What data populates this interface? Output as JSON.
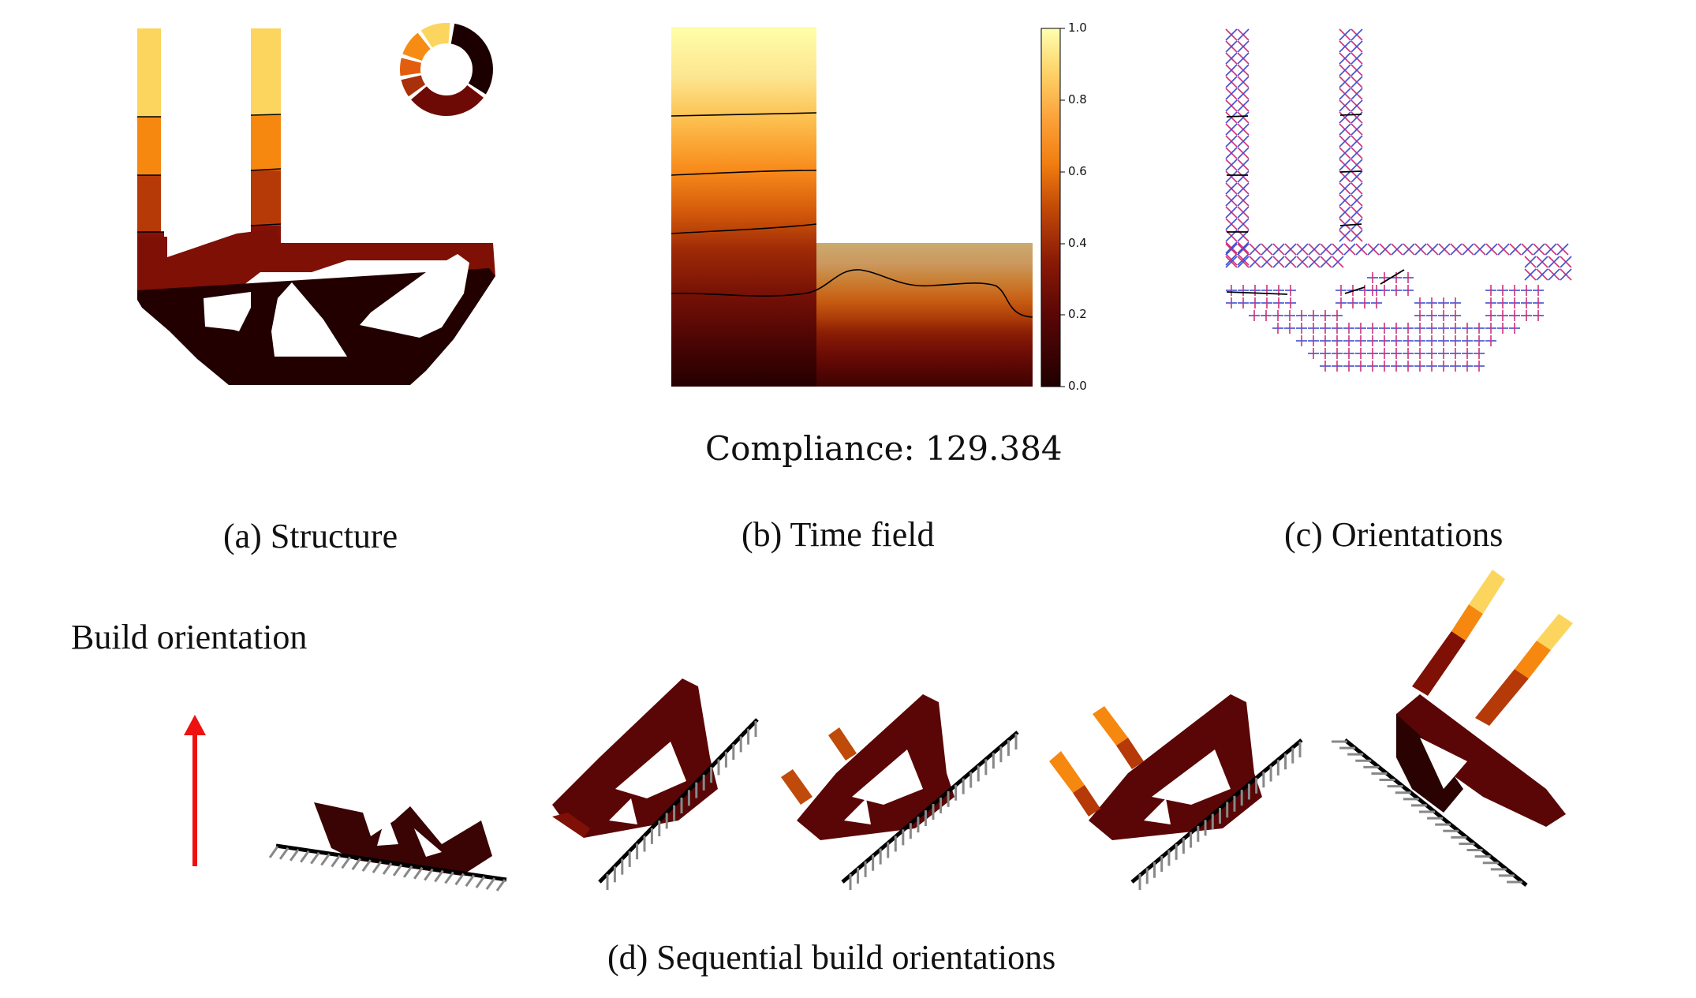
{
  "figure": {
    "compliance_text": "Compliance: 129.384",
    "captions": {
      "a": "(a) Structure",
      "b": "(b) Time field",
      "c": "(c) Orientations",
      "d": "(d) Sequential build orientations"
    },
    "build_orientation_label": "Build orientation",
    "arrow_color": "#ee1111",
    "colormap": [
      "#ffffa0",
      "#fbd55a",
      "#fd9a1e",
      "#e2620c",
      "#b53208",
      "#8c1206",
      "#620808",
      "#3a0404",
      "#1a0000"
    ]
  },
  "chart_data": {
    "type": "heatmap",
    "title": "",
    "colorbar_ticks": [
      "0.0",
      "0.2",
      "0.4",
      "0.6",
      "0.8",
      "1.0"
    ],
    "colorbar_range": [
      0,
      1
    ],
    "colormap": "afmhot"
  }
}
